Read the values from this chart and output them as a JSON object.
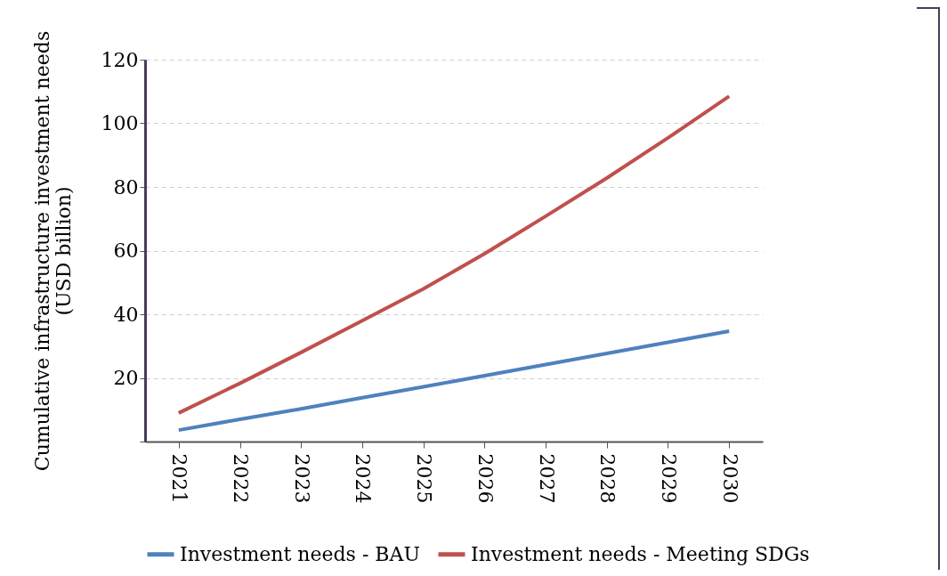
{
  "chart_data": {
    "type": "line",
    "ylabel": "Cumulative infrastructure investment needs (USD billion)",
    "categories": [
      "2021",
      "2022",
      "2023",
      "2024",
      "2025",
      "2026",
      "2027",
      "2028",
      "2029",
      "2030"
    ],
    "series": [
      {
        "name": "Investment needs - BAU",
        "color": "#4f81bd",
        "values": [
          3.6,
          7.0,
          10.3,
          13.8,
          17.2,
          20.7,
          24.2,
          27.7,
          31.2,
          34.7
        ]
      },
      {
        "name": "Investment needs - Meeting SDGs",
        "color": "#c0504d",
        "values": [
          9.0,
          18.3,
          28.0,
          38.0,
          48.0,
          59.0,
          70.8,
          82.8,
          95.4,
          108.5
        ]
      }
    ],
    "ylim": [
      0,
      120
    ],
    "yticks": [
      {
        "value": 0,
        "label": null
      },
      20,
      40,
      60,
      80,
      100,
      120
    ],
    "grid": "y",
    "legend": "bottom",
    "marker": "none",
    "line_style": "solid"
  }
}
